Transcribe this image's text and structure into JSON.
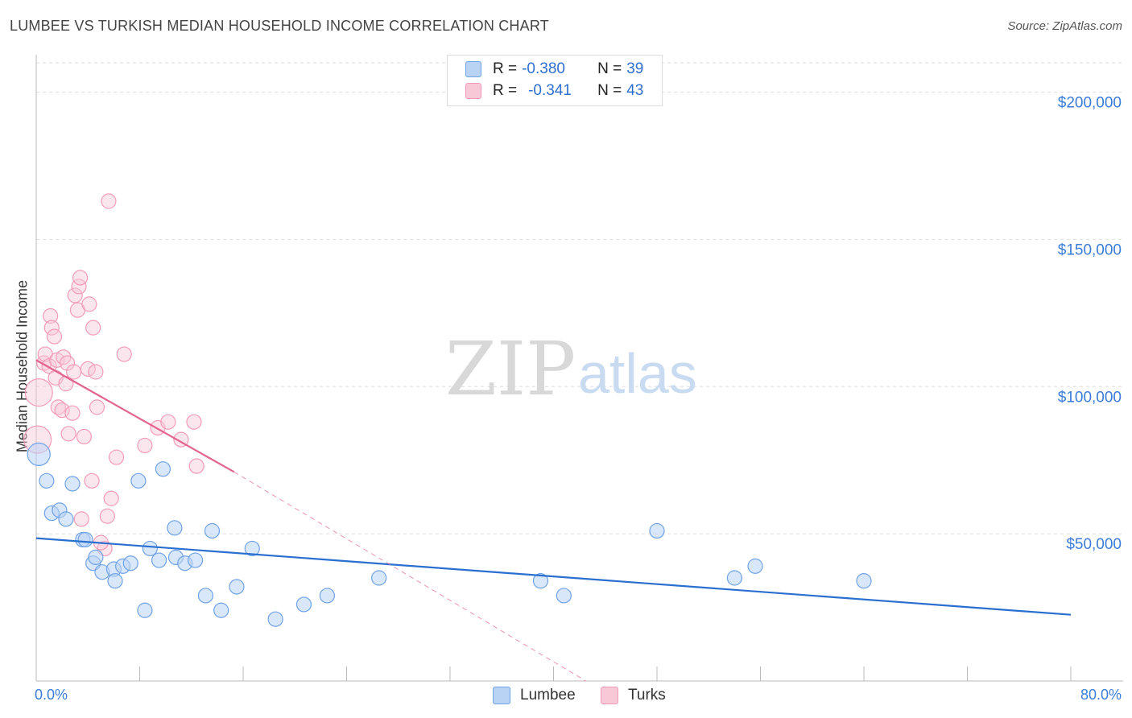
{
  "title": "LUMBEE VS TURKISH MEDIAN HOUSEHOLD INCOME CORRELATION CHART",
  "source": "Source: ZipAtlas.com",
  "watermark": {
    "zip": "ZIP",
    "atlas": "atlas"
  },
  "legend": {
    "series1": {
      "r_label": "R = ",
      "r_value": "-0.380",
      "n_label": "N = ",
      "n_value": "39"
    },
    "series2": {
      "r_label": "R = ",
      "r_value": "-0.341",
      "n_label": "N = ",
      "n_value": "43"
    }
  },
  "bottom_legend": {
    "lumbee": "Lumbee",
    "turks": "Turks"
  },
  "chart_data": {
    "type": "scatter",
    "title": "LUMBEE VS TURKISH MEDIAN HOUSEHOLD INCOME CORRELATION CHART",
    "xlabel": "",
    "ylabel": "Median Household Income",
    "xlim": [
      0,
      80
    ],
    "ylim": [
      0,
      210000
    ],
    "x_tick_labels": [
      "0.0%",
      "80.0%"
    ],
    "y_ticks": [
      50000,
      100000,
      150000,
      200000
    ],
    "y_tick_labels": [
      "$50,000",
      "$100,000",
      "$150,000",
      "$200,000"
    ],
    "colors": {
      "lumbee": "#6fa3e6",
      "lumbee_line": "#2a6fd0",
      "turks": "#f29bb8",
      "turks_line": "#e2648f"
    },
    "series": [
      {
        "name": "Lumbee",
        "R": -0.38,
        "N": 39,
        "trend": {
          "x0": 0,
          "y0": 48500,
          "x1": 80,
          "y1": 22500
        },
        "points": [
          [
            0.2,
            77000
          ],
          [
            0.8,
            68000
          ],
          [
            1.2,
            57000
          ],
          [
            1.8,
            58000
          ],
          [
            2.3,
            55000
          ],
          [
            2.8,
            67000
          ],
          [
            3.6,
            48000
          ],
          [
            3.8,
            48000
          ],
          [
            4.4,
            40000
          ],
          [
            4.6,
            42000
          ],
          [
            5.1,
            37000
          ],
          [
            6.0,
            38000
          ],
          [
            6.1,
            34000
          ],
          [
            6.7,
            39000
          ],
          [
            7.3,
            40000
          ],
          [
            7.9,
            68000
          ],
          [
            8.4,
            24000
          ],
          [
            8.8,
            45000
          ],
          [
            9.5,
            41000
          ],
          [
            9.8,
            72000
          ],
          [
            10.7,
            52000
          ],
          [
            10.8,
            42000
          ],
          [
            11.5,
            40000
          ],
          [
            12.3,
            41000
          ],
          [
            13.1,
            29000
          ],
          [
            13.6,
            51000
          ],
          [
            14.3,
            24000
          ],
          [
            15.5,
            32000
          ],
          [
            16.7,
            45000
          ],
          [
            18.5,
            21000
          ],
          [
            20.7,
            26000
          ],
          [
            22.5,
            29000
          ],
          [
            26.5,
            35000
          ],
          [
            39.0,
            34000
          ],
          [
            40.8,
            29000
          ],
          [
            48.0,
            51000
          ],
          [
            54.0,
            35000
          ],
          [
            55.6,
            39000
          ],
          [
            64.0,
            34000
          ]
        ]
      },
      {
        "name": "Turks",
        "R": -0.341,
        "N": 43,
        "trend": {
          "x0": 0,
          "y0": 109000,
          "x1": 15.3,
          "y1": 71000
        },
        "trend_dashed": {
          "x0": 15.3,
          "y0": 71000,
          "x1": 42.5,
          "y1": 0
        },
        "points": [
          [
            0.1,
            82000
          ],
          [
            0.2,
            98000
          ],
          [
            0.6,
            108000
          ],
          [
            0.7,
            111000
          ],
          [
            1.0,
            107000
          ],
          [
            1.1,
            124000
          ],
          [
            1.2,
            120000
          ],
          [
            1.4,
            117000
          ],
          [
            1.5,
            103000
          ],
          [
            1.6,
            109000
          ],
          [
            1.7,
            93000
          ],
          [
            2.0,
            92000
          ],
          [
            2.1,
            110000
          ],
          [
            2.3,
            101000
          ],
          [
            2.4,
            108000
          ],
          [
            2.5,
            84000
          ],
          [
            2.8,
            91000
          ],
          [
            2.9,
            105000
          ],
          [
            3.0,
            131000
          ],
          [
            3.2,
            126000
          ],
          [
            3.3,
            134000
          ],
          [
            3.4,
            137000
          ],
          [
            3.5,
            55000
          ],
          [
            3.7,
            83000
          ],
          [
            4.0,
            106000
          ],
          [
            4.1,
            128000
          ],
          [
            4.3,
            68000
          ],
          [
            4.4,
            120000
          ],
          [
            4.6,
            105000
          ],
          [
            4.7,
            93000
          ],
          [
            5.3,
            45000
          ],
          [
            5.5,
            56000
          ],
          [
            5.6,
            163000
          ],
          [
            5.8,
            62000
          ],
          [
            6.2,
            76000
          ],
          [
            6.8,
            111000
          ],
          [
            8.4,
            80000
          ],
          [
            9.4,
            86000
          ],
          [
            10.2,
            88000
          ],
          [
            11.2,
            82000
          ],
          [
            12.4,
            73000
          ],
          [
            12.2,
            88000
          ],
          [
            5.0,
            47000
          ]
        ]
      }
    ]
  }
}
